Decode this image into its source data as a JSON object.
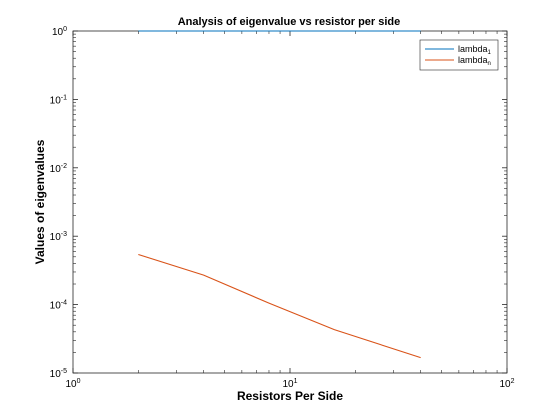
{
  "chart_data": {
    "type": "line",
    "title": "Analysis of eigenvalue vs resistor per side",
    "xlabel": "Resistors Per Side",
    "ylabel": "Values of eigenvalues",
    "xscale": "log",
    "yscale": "log",
    "xlim": [
      1,
      100
    ],
    "ylim": [
      1e-05,
      1
    ],
    "grid": false,
    "legend_position": "top-right",
    "x_ticks": [
      {
        "value": 1,
        "base": "10",
        "exp": "0"
      },
      {
        "value": 10,
        "base": "10",
        "exp": "1"
      },
      {
        "value": 100,
        "base": "10",
        "exp": "2"
      }
    ],
    "y_ticks": [
      {
        "value": 1,
        "base": "10",
        "exp": "0"
      },
      {
        "value": 0.1,
        "base": "10",
        "exp": "-1"
      },
      {
        "value": 0.01,
        "base": "10",
        "exp": "-2"
      },
      {
        "value": 0.001,
        "base": "10",
        "exp": "-3"
      },
      {
        "value": 0.0001,
        "base": "10",
        "exp": "-4"
      },
      {
        "value": 1e-05,
        "base": "10",
        "exp": "-5"
      }
    ],
    "series": [
      {
        "name": "lambda",
        "name_sub": "1",
        "color": "#0072bd",
        "x": [
          2,
          4,
          8,
          16,
          40
        ],
        "y": [
          1,
          1,
          1,
          1,
          1
        ]
      },
      {
        "name": "lambda",
        "name_sub": "n",
        "color": "#d95319",
        "x": [
          2,
          4,
          8,
          16,
          40
        ],
        "y": [
          0.00054,
          0.00027,
          0.000105,
          4.3e-05,
          1.68e-05
        ]
      }
    ]
  }
}
